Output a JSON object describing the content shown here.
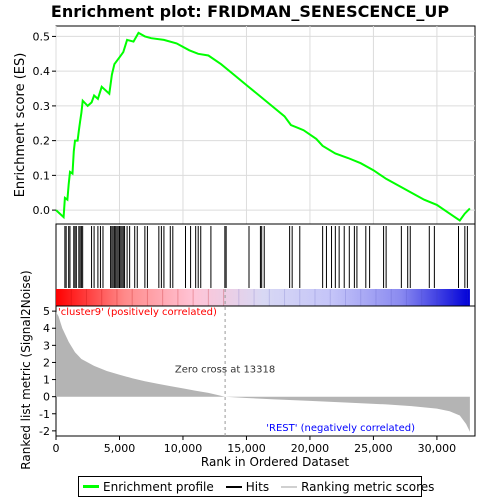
{
  "chart_data": {
    "type": "line",
    "title": "Enrichment plot: FRIDMAN_SENESCENCE_UP",
    "es_panel": {
      "ylabel": "Enrichment score (ES)",
      "ylim": [
        -0.04,
        0.53
      ],
      "yticks": [
        "0.0",
        "0.1",
        "0.2",
        "0.3",
        "0.4",
        "0.5"
      ],
      "ytick_values": [
        0.0,
        0.1,
        0.2,
        0.3,
        0.4,
        0.5
      ],
      "grid": true,
      "line_color": "#00ff00",
      "profile": [
        [
          0,
          0.0
        ],
        [
          600,
          -0.02
        ],
        [
          700,
          0.035
        ],
        [
          900,
          0.03
        ],
        [
          1000,
          0.075
        ],
        [
          1100,
          0.11
        ],
        [
          1300,
          0.105
        ],
        [
          1400,
          0.17
        ],
        [
          1500,
          0.2
        ],
        [
          1700,
          0.2
        ],
        [
          1800,
          0.23
        ],
        [
          1900,
          0.255
        ],
        [
          2000,
          0.28
        ],
        [
          2100,
          0.315
        ],
        [
          2500,
          0.3
        ],
        [
          2800,
          0.31
        ],
        [
          3000,
          0.33
        ],
        [
          3300,
          0.32
        ],
        [
          3600,
          0.355
        ],
        [
          4200,
          0.335
        ],
        [
          4400,
          0.39
        ],
        [
          4600,
          0.42
        ],
        [
          5000,
          0.44
        ],
        [
          5300,
          0.455
        ],
        [
          5600,
          0.49
        ],
        [
          6100,
          0.485
        ],
        [
          6500,
          0.51
        ],
        [
          7000,
          0.5
        ],
        [
          7500,
          0.495
        ],
        [
          8500,
          0.49
        ],
        [
          9500,
          0.48
        ],
        [
          10500,
          0.46
        ],
        [
          11200,
          0.45
        ],
        [
          12000,
          0.445
        ],
        [
          13000,
          0.42
        ],
        [
          14000,
          0.39
        ],
        [
          15000,
          0.36
        ],
        [
          16000,
          0.33
        ],
        [
          17000,
          0.3
        ],
        [
          18000,
          0.27
        ],
        [
          18500,
          0.245
        ],
        [
          19500,
          0.23
        ],
        [
          20500,
          0.205
        ],
        [
          21000,
          0.185
        ],
        [
          22000,
          0.163
        ],
        [
          23000,
          0.15
        ],
        [
          24000,
          0.135
        ],
        [
          25000,
          0.115
        ],
        [
          26000,
          0.09
        ],
        [
          27000,
          0.07
        ],
        [
          28000,
          0.05
        ],
        [
          29000,
          0.03
        ],
        [
          30000,
          0.015
        ],
        [
          31000,
          -0.01
        ],
        [
          31800,
          -0.03
        ],
        [
          32200,
          -0.01
        ],
        [
          32600,
          0.005
        ]
      ]
    },
    "hits_panel": {
      "hit_color": "#000000",
      "hits": [
        700,
        800,
        1000,
        1100,
        1400,
        1500,
        1600,
        1800,
        1900,
        2000,
        2100,
        2800,
        3000,
        3300,
        3500,
        3700,
        4300,
        4400,
        4500,
        4600,
        4700,
        4800,
        4900,
        5000,
        5100,
        5200,
        5300,
        5400,
        5600,
        5800,
        6200,
        6400,
        7000,
        7200,
        8100,
        8300,
        8500,
        9000,
        9200,
        10200,
        10600,
        11000,
        11200,
        11400,
        12200,
        13300,
        13400,
        15200,
        16100,
        16200,
        16400,
        18400,
        18600,
        19200,
        21000,
        21300,
        21700,
        22000,
        22300,
        22700,
        23100,
        23500,
        23700,
        24400,
        24700,
        25800,
        26000,
        27200,
        27700,
        27900,
        29400,
        29800,
        31700,
        32200,
        32400
      ]
    },
    "color_bar": {
      "stops": [
        "#ff0000",
        "#ff8a8a",
        "#ffc4d6",
        "#d8d8f4",
        "#c4c4f8",
        "#8a8af0",
        "#0000d8"
      ]
    },
    "metric_panel": {
      "ylabel": "Ranked list metric (Signal2Noise)",
      "ylim": [
        -2.3,
        5.3
      ],
      "yticks": [
        "-2",
        "-1",
        "0",
        "1",
        "2",
        "3",
        "4",
        "5"
      ],
      "ytick_values": [
        -2,
        -1,
        0,
        1,
        2,
        3,
        4,
        5
      ],
      "fill_color": "#b4b4b4",
      "curve": [
        [
          0,
          4.95
        ],
        [
          200,
          4.7
        ],
        [
          500,
          4.0
        ],
        [
          1000,
          3.2
        ],
        [
          1500,
          2.6
        ],
        [
          2000,
          2.2
        ],
        [
          3000,
          1.8
        ],
        [
          4000,
          1.5
        ],
        [
          5000,
          1.28
        ],
        [
          6000,
          1.08
        ],
        [
          7000,
          0.9
        ],
        [
          8000,
          0.75
        ],
        [
          9000,
          0.62
        ],
        [
          10000,
          0.48
        ],
        [
          11000,
          0.35
        ],
        [
          12000,
          0.22
        ],
        [
          13318,
          0.0
        ],
        [
          15000,
          -0.08
        ],
        [
          17000,
          -0.15
        ],
        [
          20000,
          -0.25
        ],
        [
          23000,
          -0.35
        ],
        [
          26000,
          -0.45
        ],
        [
          28000,
          -0.55
        ],
        [
          30000,
          -0.7
        ],
        [
          31000,
          -0.85
        ],
        [
          31800,
          -1.1
        ],
        [
          32300,
          -1.6
        ],
        [
          32600,
          -2.05
        ]
      ],
      "zero_cross": 13318,
      "zero_cross_label": "Zero cross at 13318",
      "pos_label": "'cluster9' (positively correlated)",
      "neg_label": "'REST' (negatively correlated)",
      "pos_label_color": "#ff0000",
      "neg_label_color": "#0000ff"
    },
    "x_axis": {
      "xlabel": "Rank in Ordered Dataset",
      "xlim": [
        0,
        33000
      ],
      "max_rank": 32600,
      "xticks": [
        "0",
        "5,000",
        "10,000",
        "15,000",
        "20,000",
        "25,000",
        "30,000"
      ],
      "xtick_values": [
        0,
        5000,
        10000,
        15000,
        20000,
        25000,
        30000
      ]
    },
    "legend": {
      "placement": "bottom",
      "entries": [
        {
          "label": "Enrichment profile",
          "color": "#00ff00"
        },
        {
          "label": "Hits",
          "color": "#000000"
        },
        {
          "label": "Ranking metric scores",
          "color": "#d0d0d0"
        }
      ]
    }
  }
}
